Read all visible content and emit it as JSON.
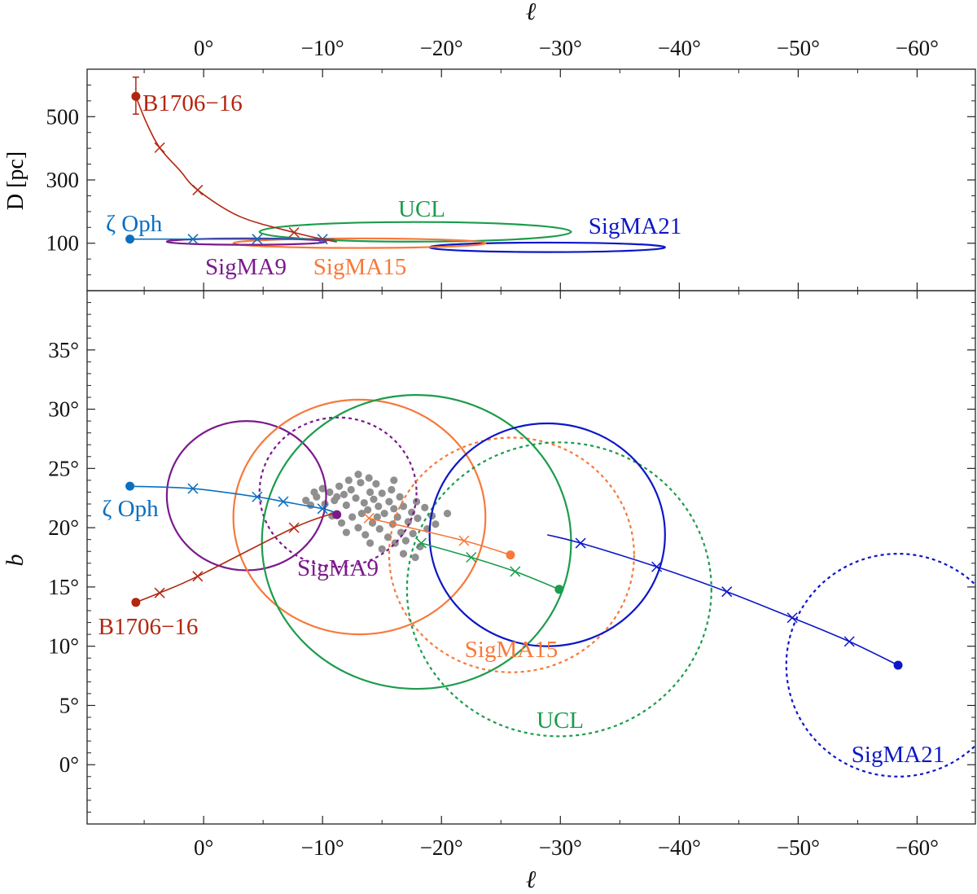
{
  "colors": {
    "zeta_oph": "#0b6fc0",
    "b1706": "#b3260f",
    "sigma9": "#7b1a8c",
    "sigma15": "#f7793a",
    "ucl": "#1c9c4c",
    "sigma21": "#0d17c6",
    "members": "#8f8f8f"
  },
  "chart_data": [
    {
      "type": "line",
      "panel": "top",
      "xlabel": "ℓ",
      "ylabel": "D [pc]",
      "xlim": [
        9.8,
        -64.9
      ],
      "ylim": [
        -50,
        650
      ],
      "x_ticks": [
        0,
        -10,
        -20,
        -30,
        -40,
        -50,
        -60
      ],
      "x_tick_labels": [
        "0°",
        "−10°",
        "−20°",
        "−30°",
        "−40°",
        "−50°",
        "−60°"
      ],
      "y_ticks": [
        100,
        300,
        500
      ],
      "y_tick_labels": [
        "100",
        "300",
        "500"
      ],
      "tracks": [
        {
          "name": "ζ Oph",
          "color_key": "zeta_oph",
          "start": [
            6.2,
            113
          ],
          "points": [
            [
              6.2,
              113
            ],
            [
              0.9,
              113
            ],
            [
              -4.5,
              113
            ],
            [
              -10,
              113
            ],
            [
              -11,
              112
            ]
          ],
          "markers": [
            [
              0.9,
              113
            ],
            [
              -4.5,
              113
            ],
            [
              -10,
              113
            ]
          ]
        },
        {
          "name": "B1706−16",
          "color_key": "b1706",
          "start": [
            5.7,
            564
          ],
          "error": [
            508,
            625
          ],
          "points": [
            [
              5.7,
              564
            ],
            [
              4.8,
              480
            ],
            [
              3.7,
              402
            ],
            [
              2,
              330
            ],
            [
              0.5,
              268
            ],
            [
              -3,
              185
            ],
            [
              -7.6,
              134
            ],
            [
              -10,
              113
            ],
            [
              -11.2,
              104
            ]
          ],
          "markers": [
            [
              3.7,
              402
            ],
            [
              0.5,
              268
            ],
            [
              -7.6,
              134
            ]
          ]
        }
      ],
      "ellipses": [
        {
          "name": "UCL",
          "color_key": "ucl",
          "center": [
            -17.8,
            136
          ],
          "radii": [
            13.1,
            31
          ]
        },
        {
          "name": "SigMA21",
          "color_key": "sigma21",
          "center": [
            -28.9,
            87
          ],
          "radii": [
            9.9,
            15
          ]
        },
        {
          "name": "SigMA15",
          "color_key": "sigma15",
          "center": [
            -13.1,
            100
          ],
          "radii": [
            10.6,
            15
          ]
        },
        {
          "name": "SigMA9",
          "color_key": "sigma9",
          "center": [
            -3.6,
            105
          ],
          "radii": [
            6.7,
            10
          ]
        }
      ]
    },
    {
      "type": "scatter",
      "panel": "bottom",
      "xlabel": "ℓ",
      "ylabel": "b",
      "xlim": [
        9.8,
        -64.9
      ],
      "ylim": [
        -5,
        40
      ],
      "x_ticks": [
        0,
        -10,
        -20,
        -30,
        -40,
        -50,
        -60
      ],
      "x_tick_labels": [
        "0°",
        "−10°",
        "−20°",
        "−30°",
        "−40°",
        "−50°",
        "−60°"
      ],
      "y_ticks": [
        0,
        5,
        10,
        15,
        20,
        25,
        30,
        35
      ],
      "y_tick_labels": [
        "0°",
        "5°",
        "10°",
        "15°",
        "20°",
        "25°",
        "30°",
        "35°"
      ],
      "tracks": [
        {
          "name": "ζ Oph",
          "color_key": "zeta_oph",
          "start": [
            6.2,
            23.5
          ],
          "points": [
            [
              6.2,
              23.5
            ],
            [
              0.9,
              23.3
            ],
            [
              -4.5,
              22.6
            ],
            [
              -6.7,
              22.2
            ],
            [
              -10,
              21.6
            ],
            [
              -11,
              21.3
            ]
          ],
          "markers": [
            [
              0.9,
              23.3
            ],
            [
              -4.5,
              22.6
            ],
            [
              -6.7,
              22.2
            ],
            [
              -10,
              21.6
            ]
          ]
        },
        {
          "name": "B1706−16",
          "color_key": "b1706",
          "start": [
            5.7,
            13.7
          ],
          "points": [
            [
              5.7,
              13.7
            ],
            [
              3.7,
              14.5
            ],
            [
              0.5,
              15.9
            ],
            [
              -7.6,
              20.0
            ],
            [
              -11.2,
              21.3
            ]
          ],
          "markers": [
            [
              3.7,
              14.5
            ],
            [
              0.5,
              15.9
            ],
            [
              -7.6,
              20.0
            ]
          ]
        },
        {
          "name": "SigMA9",
          "color_key": "sigma9",
          "start": [
            -11.2,
            21.1
          ],
          "points": [],
          "markers": []
        },
        {
          "name": "SigMA15",
          "color_key": "sigma15",
          "start": [
            -25.8,
            17.7
          ],
          "points": [
            [
              -13.9,
              20.8
            ],
            [
              -21.9,
              18.9
            ],
            [
              -25.8,
              17.7
            ]
          ],
          "markers": [
            [
              -13.9,
              20.8
            ],
            [
              -21.9,
              18.9
            ]
          ]
        },
        {
          "name": "UCL",
          "color_key": "ucl",
          "start": [
            -29.9,
            14.8
          ],
          "points": [
            [
              -18.3,
              18.7
            ],
            [
              -22.5,
              17.5
            ],
            [
              -26.2,
              16.3
            ],
            [
              -29.9,
              14.8
            ]
          ],
          "markers": [
            [
              -18.3,
              18.7
            ],
            [
              -22.5,
              17.5
            ],
            [
              -26.2,
              16.3
            ]
          ]
        },
        {
          "name": "SigMA21",
          "color_key": "sigma21",
          "start": [
            -58.4,
            8.4
          ],
          "points": [
            [
              -28.9,
              19.4
            ],
            [
              -31.7,
              18.7
            ],
            [
              -38.1,
              16.7
            ],
            [
              -44,
              14.6
            ],
            [
              -49.5,
              12.4
            ],
            [
              -54.3,
              10.4
            ],
            [
              -58.4,
              8.4
            ]
          ],
          "markers": [
            [
              -31.7,
              18.7
            ],
            [
              -38.1,
              16.7
            ],
            [
              -44,
              14.6
            ],
            [
              -49.5,
              12.4
            ],
            [
              -54.3,
              10.4
            ]
          ]
        }
      ],
      "circles": [
        {
          "name": "SigMA9",
          "color_key": "sigma9",
          "style": "solid",
          "center": [
            -3.6,
            22.7
          ],
          "radii": [
            6.7,
            6.3
          ]
        },
        {
          "name": "SigMA9",
          "color_key": "sigma9",
          "style": "dashed",
          "center": [
            -11.3,
            23.0
          ],
          "radii": [
            6.6,
            6.3
          ]
        },
        {
          "name": "SigMA15",
          "color_key": "sigma15",
          "style": "solid",
          "center": [
            -13.1,
            20.9
          ],
          "radii": [
            10.6,
            9.9
          ]
        },
        {
          "name": "SigMA15",
          "color_key": "sigma15",
          "style": "dashed",
          "center": [
            -25.9,
            17.7
          ],
          "radii": [
            10.3,
            9.9
          ]
        },
        {
          "name": "UCL",
          "color_key": "ucl",
          "style": "solid",
          "center": [
            -17.9,
            18.8
          ],
          "radii": [
            13.0,
            12.4
          ]
        },
        {
          "name": "UCL",
          "color_key": "ucl",
          "style": "dashed",
          "center": [
            -29.9,
            14.8
          ],
          "radii": [
            12.8,
            12.4
          ]
        },
        {
          "name": "SigMA21",
          "color_key": "sigma21",
          "style": "solid",
          "center": [
            -28.9,
            19.4
          ],
          "radii": [
            9.9,
            9.4
          ]
        },
        {
          "name": "SigMA21",
          "color_key": "sigma21",
          "style": "dashed",
          "center": [
            -58.4,
            8.4
          ],
          "radii": [
            9.4,
            9.4
          ]
        }
      ],
      "members": [
        [
          -9.0,
          21.9
        ],
        [
          -9.5,
          22.6
        ],
        [
          -10.2,
          22.0
        ],
        [
          -10.6,
          23.0
        ],
        [
          -11.0,
          22.3
        ],
        [
          -11.4,
          23.5
        ],
        [
          -11.8,
          22.8
        ],
        [
          -12.0,
          21.9
        ],
        [
          -12.4,
          23.2
        ],
        [
          -12.8,
          22.5
        ],
        [
          -13.2,
          23.8
        ],
        [
          -13.5,
          22.1
        ],
        [
          -13.8,
          21.5
        ],
        [
          -14.0,
          23.0
        ],
        [
          -14.3,
          22.4
        ],
        [
          -14.7,
          21.8
        ],
        [
          -15.0,
          22.9
        ],
        [
          -15.2,
          21.2
        ],
        [
          -15.6,
          22.2
        ],
        [
          -16.0,
          21.6
        ],
        [
          -16.3,
          20.9
        ],
        [
          -16.8,
          21.8
        ],
        [
          -17.2,
          20.5
        ],
        [
          -17.5,
          21.3
        ],
        [
          -18.0,
          20.8
        ],
        [
          -18.6,
          21.7
        ],
        [
          -19.2,
          21.0
        ],
        [
          -20.5,
          21.2
        ],
        [
          -10.8,
          21.0
        ],
        [
          -11.6,
          20.4
        ],
        [
          -12.5,
          20.9
        ],
        [
          -13.0,
          20.0
        ],
        [
          -13.6,
          19.4
        ],
        [
          -14.2,
          20.4
        ],
        [
          -14.8,
          19.9
        ],
        [
          -15.5,
          19.2
        ],
        [
          -16.1,
          18.7
        ],
        [
          -16.6,
          19.6
        ],
        [
          -17.0,
          18.9
        ],
        [
          -17.6,
          19.5
        ],
        [
          -18.2,
          18.4
        ],
        [
          -12.2,
          24.0
        ],
        [
          -13.0,
          24.5
        ],
        [
          -14.5,
          23.7
        ],
        [
          -15.8,
          23.2
        ],
        [
          -16.5,
          22.6
        ],
        [
          -10.0,
          23.3
        ],
        [
          -9.3,
          23.0
        ],
        [
          -8.6,
          22.3
        ],
        [
          -12.0,
          19.6
        ],
        [
          -14.0,
          18.7
        ],
        [
          -15.0,
          18.2
        ],
        [
          -16.8,
          17.8
        ],
        [
          -17.8,
          17.5
        ],
        [
          -18.8,
          19.9
        ],
        [
          -19.5,
          20.3
        ],
        [
          -11.2,
          22.6
        ],
        [
          -13.3,
          21.2
        ],
        [
          -14.6,
          20.9
        ],
        [
          -15.9,
          20.3
        ],
        [
          -17.9,
          22.2
        ],
        [
          -16.0,
          24.0
        ],
        [
          -13.9,
          24.2
        ]
      ]
    }
  ],
  "labels": {
    "top": {
      "b1706": "B1706−16",
      "zeta": "ζ Oph",
      "ucl": "UCL",
      "sigma21": "SigMA21",
      "sigma9": "SigMA9",
      "sigma15": "SigMA15"
    },
    "bottom": {
      "zeta": "ζ Oph",
      "b1706": "B1706−16",
      "sigma9": "SigMA9",
      "sigma15": "SigMA15",
      "ucl": "UCL",
      "sigma21": "SigMA21"
    }
  }
}
